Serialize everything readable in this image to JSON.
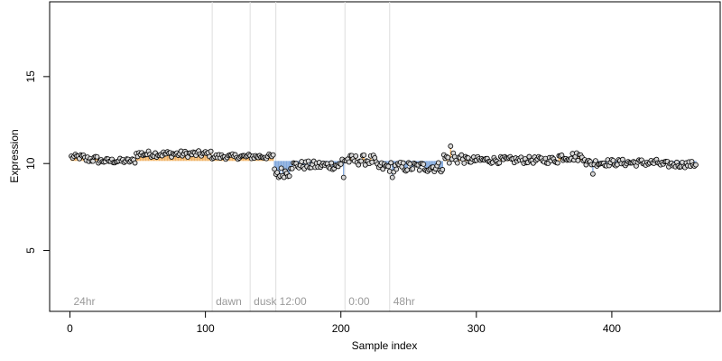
{
  "chart_data": {
    "type": "scatter",
    "title": "",
    "xlabel": "Sample index",
    "ylabel": "Expression",
    "xlim": [
      -15,
      480
    ],
    "ylim": [
      1.5,
      19.3
    ],
    "x_ticks": [
      0,
      100,
      200,
      300,
      400
    ],
    "y_ticks": [
      5,
      10,
      15
    ],
    "grid": false,
    "baseline": 10.15,
    "colors": {
      "above": "#f0b060",
      "below": "#7fa6dc",
      "point_fill": "#d8d8d8",
      "point_stroke": "#000000",
      "divider": "#dddddd"
    },
    "phase_markers": [
      {
        "label": "24hr",
        "x": 0
      },
      {
        "label": "dawn",
        "x": 105
      },
      {
        "label": "dusk",
        "x": 133
      },
      {
        "label": "12:00",
        "x": 152
      },
      {
        "label": "0:00",
        "x": 203
      },
      {
        "label": "48hr",
        "x": 236
      }
    ],
    "dividers": [
      105,
      133,
      152,
      203,
      236
    ],
    "segments": [
      {
        "x_from": 1,
        "x_to": 10,
        "mean": 10.38,
        "noise": 0.15
      },
      {
        "x_from": 11,
        "x_to": 20,
        "mean": 10.25,
        "noise": 0.2
      },
      {
        "x_from": 21,
        "x_to": 48,
        "mean": 10.15,
        "noise": 0.15
      },
      {
        "x_from": 49,
        "x_to": 104,
        "mean": 10.55,
        "noise": 0.18
      },
      {
        "x_from": 105,
        "x_to": 150,
        "mean": 10.4,
        "noise": 0.15
      },
      {
        "x_from": 151,
        "x_to": 162,
        "mean": 9.5,
        "noise": 0.3
      },
      {
        "x_from": 163,
        "x_to": 200,
        "mean": 9.9,
        "noise": 0.25
      },
      {
        "x_from": 201,
        "x_to": 225,
        "mean": 10.2,
        "noise": 0.3
      },
      {
        "x_from": 226,
        "x_to": 275,
        "mean": 9.8,
        "noise": 0.3
      },
      {
        "x_from": 276,
        "x_to": 290,
        "mean": 10.3,
        "noise": 0.35
      },
      {
        "x_from": 291,
        "x_to": 360,
        "mean": 10.2,
        "noise": 0.2
      },
      {
        "x_from": 361,
        "x_to": 380,
        "mean": 10.4,
        "noise": 0.25
      },
      {
        "x_from": 381,
        "x_to": 435,
        "mean": 10.05,
        "noise": 0.2
      },
      {
        "x_from": 436,
        "x_to": 462,
        "mean": 9.95,
        "noise": 0.18
      }
    ],
    "highlights": [
      {
        "x": 281,
        "y": 11.0
      },
      {
        "x": 283,
        "y": 10.6
      },
      {
        "x": 154,
        "y": 9.2
      },
      {
        "x": 157,
        "y": 9.3
      },
      {
        "x": 202,
        "y": 9.2
      },
      {
        "x": 238,
        "y": 9.2
      },
      {
        "x": 386,
        "y": 9.4
      }
    ]
  }
}
